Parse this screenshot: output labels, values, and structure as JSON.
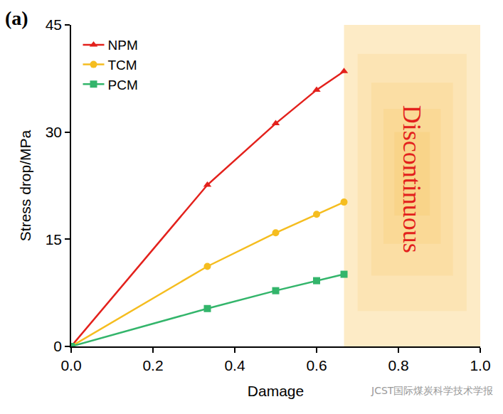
{
  "chart_data": {
    "type": "line",
    "panel_label": "(a)",
    "x_label": "Damage",
    "y_label": "Stress drop/MPa",
    "x": [
      0,
      0.333,
      0.5,
      0.6,
      0.667
    ],
    "series": [
      {
        "name": "NPM",
        "color": "#e3211c",
        "marker": "triangle-up",
        "values": [
          0,
          22.6,
          31.2,
          35.9,
          38.5
        ]
      },
      {
        "name": "TCM",
        "color": "#f5bd1f",
        "marker": "circle",
        "values": [
          0,
          11.2,
          15.9,
          18.5,
          20.2
        ]
      },
      {
        "name": "PCM",
        "color": "#33b56b",
        "marker": "square",
        "values": [
          0,
          5.3,
          7.8,
          9.2,
          10.1
        ]
      }
    ],
    "xlim": [
      0,
      1
    ],
    "xticks": [
      {
        "value": 0,
        "label": "0.0"
      },
      {
        "value": 0.2,
        "label": "0.2"
      },
      {
        "value": 0.4,
        "label": "0.4"
      },
      {
        "value": 0.6,
        "label": "0.6"
      },
      {
        "value": 0.8,
        "label": "0.8"
      },
      {
        "value": 1,
        "label": "1.0"
      }
    ],
    "ylim": [
      0,
      45
    ],
    "yticks": [
      0,
      15,
      30,
      45
    ],
    "grid": false,
    "legend": "upper left",
    "shaded_region": {
      "x0": 0.667,
      "x1": 1,
      "label": "Discontinuous",
      "color": "#f7b733"
    },
    "watermark": "JCST国际煤炭科学技术学报"
  }
}
